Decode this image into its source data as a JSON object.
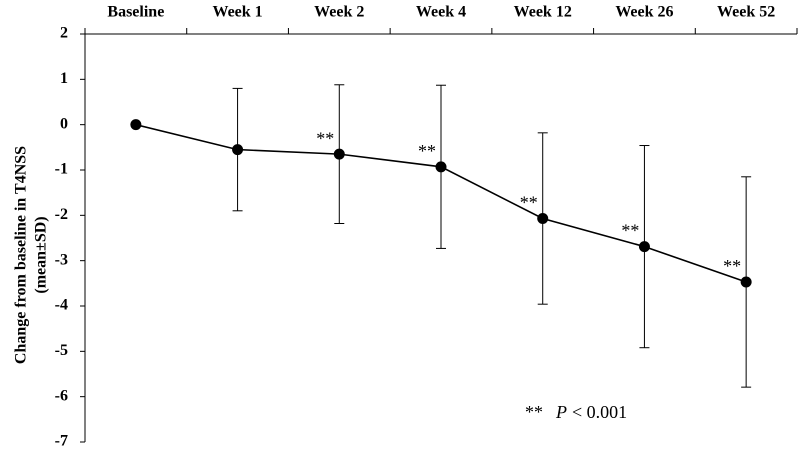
{
  "chart_data": {
    "type": "line",
    "y_label": [
      "Change from baseline in T4NSS",
      "(mean±SD)"
    ],
    "categories": [
      "Baseline",
      "Week 1",
      "Week 2",
      "Week 4",
      "Week 12",
      "Week 26",
      "Week 52"
    ],
    "series": [
      {
        "color": "#000000",
        "values": [
          0,
          -0.55,
          -0.65,
          -0.93,
          -2.07,
          -2.69,
          -3.47
        ],
        "errors": [
          null,
          1.35,
          1.53,
          1.8,
          1.89,
          2.23,
          2.32
        ]
      }
    ],
    "significance": [
      null,
      null,
      "**",
      "**",
      "**",
      "**",
      "**"
    ],
    "footnote": {
      "stars": "**",
      "p": "P",
      "text": "< 0.001"
    },
    "ylim": [
      -7,
      2
    ],
    "yticks": [
      -7,
      -6,
      -5,
      -4,
      -3,
      -2,
      -1,
      0,
      1,
      2
    ]
  }
}
